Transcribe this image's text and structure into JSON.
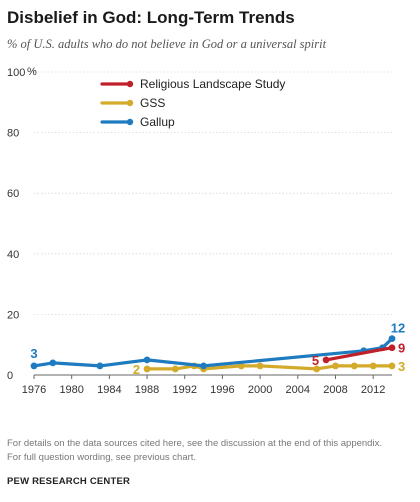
{
  "header": {
    "title": "Disbelief in God: Long-Term Trends",
    "subtitle": "% of U.S. adults who do not believe in God or a universal spirit"
  },
  "footer": {
    "note_line1": "For details on the data sources cited here, see the discussion at the end of this appendix.",
    "note_line2": "For full question wording, see previous chart.",
    "source": "PEW RESEARCH CENTER"
  },
  "chart_data": {
    "type": "line",
    "title": "Disbelief in God: Long-Term Trends",
    "subtitle": "% of U.S. adults who do not believe in God or a universal spirit",
    "xlim": [
      1976,
      2014
    ],
    "ylim": [
      0,
      100
    ],
    "y_unit": "%",
    "x_ticks": [
      "1976",
      "1980",
      "1984",
      "1988",
      "1992",
      "1996",
      "2000",
      "2004",
      "2008",
      "2012"
    ],
    "y_ticks": [
      "0",
      "20",
      "40",
      "60",
      "80",
      "100"
    ],
    "grid": "horizontal",
    "legend": "top-left",
    "series": [
      {
        "name": "Religious Landscape Study",
        "color": "#c0202a",
        "x": [
          2007,
          2014
        ],
        "y": [
          5,
          9
        ],
        "labels": [
          {
            "x": 2007,
            "y": 5,
            "text": "5",
            "side": "left"
          },
          {
            "x": 2014,
            "y": 9,
            "text": "9",
            "side": "right"
          }
        ]
      },
      {
        "name": "GSS",
        "color": "#d4aa2b",
        "x": [
          1988,
          1991,
          1993,
          1994,
          1998,
          2000,
          2006,
          2008,
          2010,
          2012,
          2014
        ],
        "y": [
          2,
          2,
          3,
          2,
          3,
          3,
          2,
          3,
          3,
          3,
          3
        ],
        "labels": [
          {
            "x": 1988,
            "y": 2,
            "text": "2",
            "side": "left"
          },
          {
            "x": 2014,
            "y": 3,
            "text": "3",
            "side": "right"
          }
        ]
      },
      {
        "name": "Gallup",
        "color": "#1f7bc0",
        "x": [
          1976,
          1978,
          1983,
          1988,
          1994,
          2011,
          2013,
          2014
        ],
        "y": [
          3,
          4,
          3,
          5,
          3,
          8,
          9,
          12
        ],
        "labels": [
          {
            "x": 1976,
            "y": 3,
            "text": "3",
            "side": "above"
          },
          {
            "x": 2014,
            "y": 12,
            "text": "12",
            "side": "above-right"
          }
        ]
      }
    ]
  }
}
